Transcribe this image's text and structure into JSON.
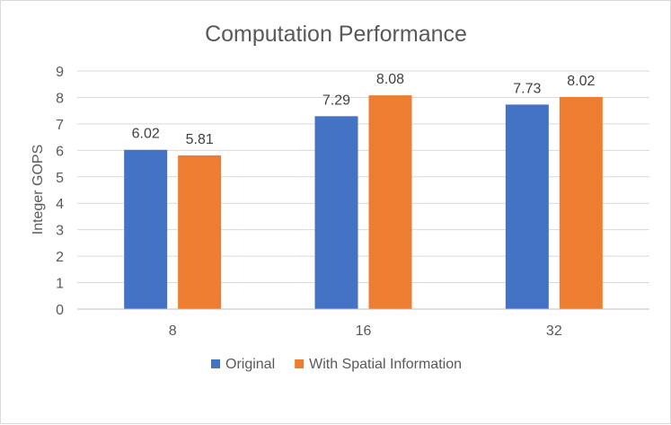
{
  "chart_data": {
    "type": "bar",
    "title": "Computation Performance",
    "xlabel": "",
    "ylabel": "Integer GOPS",
    "categories": [
      "8",
      "16",
      "32"
    ],
    "series": [
      {
        "name": "Original",
        "values": [
          6.02,
          7.29,
          7.73
        ],
        "color": "#4472C4"
      },
      {
        "name": "With Spatial Information",
        "values": [
          5.81,
          8.08,
          8.02
        ],
        "color": "#ED7D31"
      }
    ],
    "data_labels": [
      [
        "6.02",
        "7.29",
        "7.73"
      ],
      [
        "5.81",
        "8.08",
        "8.02"
      ]
    ],
    "ylim": [
      0,
      9
    ],
    "yticks": [
      0,
      1,
      2,
      3,
      4,
      5,
      6,
      7,
      8,
      9
    ],
    "grid": true,
    "legend_position": "bottom"
  }
}
